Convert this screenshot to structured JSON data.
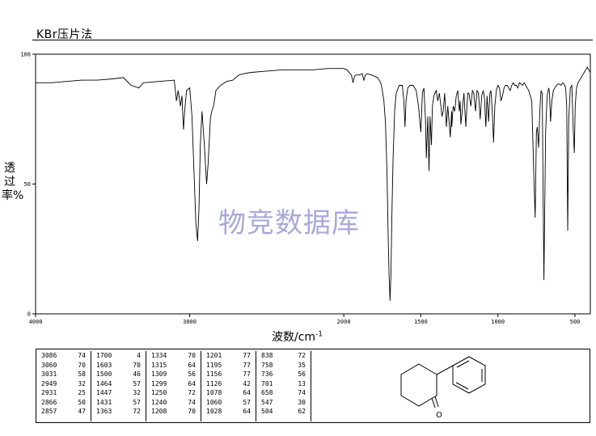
{
  "header": {
    "title": "KBr压片法"
  },
  "watermark": "物竞数据库",
  "structure": {
    "atom_label": "O"
  },
  "chart_data": {
    "type": "line",
    "title": "KBr压片法",
    "xlabel": "波数/cm",
    "xlabel_sup": "-1",
    "ylabel": "透过率%",
    "xlim": [
      4000,
      400
    ],
    "ylim": [
      0,
      100
    ],
    "x_ticks": [
      {
        "v": 4000,
        "label": "4000"
      },
      {
        "v": 3000,
        "label": "3000"
      },
      {
        "v": 2000,
        "label": "2000"
      },
      {
        "v": 1500,
        "label": "1500"
      },
      {
        "v": 1000,
        "label": "1000"
      },
      {
        "v": 500,
        "label": "500"
      }
    ],
    "y_ticks": [
      {
        "v": 0,
        "label": "0"
      },
      {
        "v": 50,
        "label": "50"
      },
      {
        "v": 100,
        "label": "100"
      }
    ],
    "series": [
      {
        "x": [
          4000,
          3900,
          3800,
          3700,
          3600,
          3500,
          3430,
          3380,
          3330,
          3300,
          3200,
          3100,
          3086,
          3075,
          3060,
          3050,
          3040,
          3031,
          3020,
          3000,
          2985,
          2960,
          2949,
          2940,
          2931,
          2920,
          2905,
          2890,
          2880,
          2866,
          2857,
          2845,
          2830,
          2800,
          2760,
          2720,
          2700,
          2680,
          2650,
          2600,
          2500,
          2400,
          2300,
          2200,
          2100,
          2000,
          1980,
          1950,
          1940,
          1930,
          1920,
          1900,
          1880,
          1870,
          1860,
          1850,
          1820,
          1800,
          1780,
          1760,
          1750,
          1740,
          1730,
          1720,
          1712,
          1706,
          1700,
          1694,
          1688,
          1680,
          1670,
          1660,
          1640,
          1620,
          1610,
          1603,
          1596,
          1585,
          1570,
          1550,
          1530,
          1515,
          1500,
          1490,
          1480,
          1470,
          1464,
          1455,
          1447,
          1440,
          1431,
          1425,
          1415,
          1400,
          1390,
          1380,
          1370,
          1363,
          1355,
          1345,
          1334,
          1325,
          1315,
          1309,
          1300,
          1299,
          1290,
          1280,
          1270,
          1260,
          1250,
          1245,
          1240,
          1230,
          1220,
          1208,
          1201,
          1195,
          1188,
          1175,
          1165,
          1156,
          1145,
          1135,
          1126,
          1115,
          1105,
          1095,
          1087,
          1078,
          1070,
          1060,
          1052,
          1045,
          1036,
          1028,
          1020,
          1010,
          1000,
          990,
          980,
          970,
          960,
          950,
          940,
          930,
          920,
          910,
          900,
          890,
          880,
          870,
          860,
          850,
          840,
          830,
          820,
          810,
          800,
          790,
          780,
          770,
          765,
          758,
          750,
          744,
          736,
          728,
          720,
          712,
          701,
          690,
          680,
          670,
          665,
          658,
          650,
          640,
          630,
          620,
          610,
          600,
          590,
          580,
          570,
          560,
          553,
          547,
          540,
          530,
          520,
          510,
          504,
          498,
          490,
          480,
          470,
          460,
          450,
          440,
          430,
          420,
          410,
          400
        ],
        "y": [
          89,
          89,
          89.5,
          90,
          90,
          90.5,
          91,
          88,
          87,
          89,
          89.5,
          90,
          82,
          86,
          80,
          84,
          71,
          79,
          86,
          87,
          76,
          35,
          28,
          40,
          65,
          78,
          65,
          50,
          58,
          75,
          78,
          80,
          86,
          88,
          89.5,
          90,
          91,
          92,
          92.5,
          93,
          93.5,
          94,
          94,
          94,
          94.5,
          94.5,
          94,
          92,
          89,
          91.5,
          92,
          92,
          92.5,
          90,
          92,
          92.5,
          92,
          91.5,
          91,
          89,
          86,
          82,
          74,
          55,
          30,
          15,
          5,
          15,
          38,
          60,
          78,
          85,
          88,
          88,
          82,
          72,
          82,
          87,
          88,
          88,
          86,
          80,
          70,
          85,
          87,
          75,
          60,
          76,
          55,
          76,
          65,
          80,
          84,
          86,
          82,
          85,
          80,
          76,
          78,
          85,
          72,
          80,
          73,
          68,
          78,
          72,
          80,
          78,
          84,
          86,
          78,
          82,
          73,
          79,
          85,
          72,
          80,
          85,
          85,
          80,
          86,
          85,
          78,
          86,
          85,
          75,
          84,
          86,
          83,
          72,
          84,
          74,
          85,
          86,
          78,
          66,
          80,
          86,
          88,
          87,
          82,
          84,
          87,
          88,
          88,
          87,
          86,
          88,
          89,
          88,
          88,
          87,
          89,
          88.5,
          88,
          89,
          88,
          87,
          86,
          84,
          82,
          60,
          50,
          37,
          70,
          72,
          64,
          78,
          86,
          85,
          13,
          70,
          84,
          87,
          85,
          74,
          82,
          86,
          87,
          88,
          88.5,
          88.5,
          88,
          89,
          88.5,
          87,
          80,
          32,
          75,
          87,
          88,
          70,
          62,
          80,
          87,
          89,
          90,
          91,
          92,
          93,
          94,
          95,
          94,
          93
        ]
      }
    ],
    "grid": false,
    "legend": "none"
  },
  "peak_table": {
    "columns": [
      [
        [
          "3086",
          "74"
        ],
        [
          "3060",
          "70"
        ],
        [
          "3031",
          "58"
        ],
        [
          "2949",
          "32"
        ],
        [
          "2931",
          "25"
        ],
        [
          "2866",
          "50"
        ],
        [
          "2857",
          "47"
        ]
      ],
      [
        [
          "1700",
          "4"
        ],
        [
          "1603",
          "70"
        ],
        [
          "1500",
          "46"
        ],
        [
          "1464",
          "57"
        ],
        [
          "1447",
          "32"
        ],
        [
          "1431",
          "57"
        ],
        [
          "1363",
          "72"
        ]
      ],
      [
        [
          "1334",
          "70"
        ],
        [
          "1315",
          "64"
        ],
        [
          "1309",
          "56"
        ],
        [
          "1299",
          "64"
        ],
        [
          "1250",
          "72"
        ],
        [
          "1240",
          "74"
        ],
        [
          "1208",
          "70"
        ]
      ],
      [
        [
          "1201",
          "77"
        ],
        [
          "1195",
          "77"
        ],
        [
          "1156",
          "77"
        ],
        [
          "1126",
          "42"
        ],
        [
          "1078",
          "64"
        ],
        [
          "1060",
          "57"
        ],
        [
          "1028",
          "64"
        ]
      ],
      [
        [
          "838",
          "72"
        ],
        [
          "758",
          "35"
        ],
        [
          "736",
          "56"
        ],
        [
          "701",
          "13"
        ],
        [
          "658",
          "74"
        ],
        [
          "547",
          "30"
        ],
        [
          "504",
          "62"
        ]
      ]
    ]
  },
  "colors": {
    "axis": "#000000",
    "trace": "#000000",
    "watermark": "#a8a8dc"
  }
}
